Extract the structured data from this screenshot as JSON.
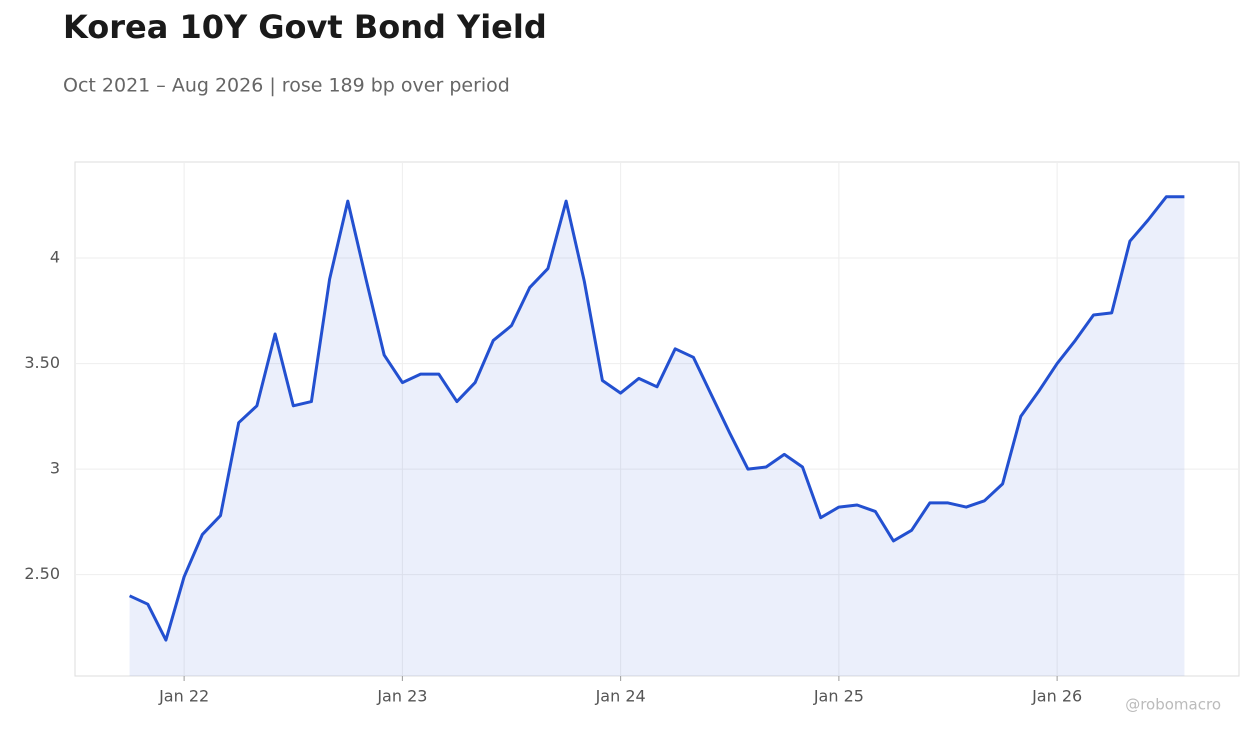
{
  "chart_data": {
    "type": "line",
    "title": "Korea 10Y Govt Bond Yield",
    "subtitle": "Oct 2021 – Aug 2026 | rose 189 bp over period",
    "watermark": "@robomacro",
    "x": [
      "2021-10",
      "2021-11",
      "2021-12",
      "2022-01",
      "2022-02",
      "2022-03",
      "2022-04",
      "2022-05",
      "2022-06",
      "2022-07",
      "2022-08",
      "2022-09",
      "2022-10",
      "2022-11",
      "2022-12",
      "2023-01",
      "2023-02",
      "2023-03",
      "2023-04",
      "2023-05",
      "2023-06",
      "2023-07",
      "2023-08",
      "2023-09",
      "2023-10",
      "2023-11",
      "2023-12",
      "2024-01",
      "2024-02",
      "2024-03",
      "2024-04",
      "2024-05",
      "2024-06",
      "2024-07",
      "2024-08",
      "2024-09",
      "2024-10",
      "2024-11",
      "2024-12",
      "2025-01",
      "2025-02",
      "2025-03",
      "2025-04",
      "2025-05",
      "2025-06",
      "2025-07",
      "2025-08",
      "2025-09",
      "2025-10",
      "2025-11",
      "2025-12",
      "2026-01",
      "2026-02",
      "2026-03",
      "2026-04",
      "2026-05",
      "2026-06",
      "2026-07",
      "2026-08"
    ],
    "series": [
      {
        "name": "Korea 10Y",
        "color": "#2350d0",
        "fill": "rgba(35,80,208,0.09)",
        "values": [
          2.4,
          2.36,
          2.19,
          2.49,
          2.69,
          2.78,
          3.22,
          3.3,
          3.64,
          3.3,
          3.32,
          3.9,
          4.27,
          3.9,
          3.54,
          3.41,
          3.45,
          3.45,
          3.32,
          3.41,
          3.61,
          3.68,
          3.86,
          3.95,
          4.27,
          3.89,
          3.42,
          3.36,
          3.43,
          3.39,
          3.57,
          3.53,
          3.35,
          3.17,
          3.0,
          3.01,
          3.07,
          3.01,
          2.77,
          2.82,
          2.83,
          2.8,
          2.66,
          2.71,
          2.84,
          2.84,
          2.82,
          2.85,
          2.93,
          3.25,
          3.37,
          3.5,
          3.61,
          3.73,
          3.74,
          4.08,
          4.18,
          4.29,
          4.29
        ]
      }
    ],
    "xlim": [
      "2021-07",
      "2026-11"
    ],
    "xticks": [
      {
        "value": "2022-01",
        "label": "Jan 22"
      },
      {
        "value": "2023-01",
        "label": "Jan 23"
      },
      {
        "value": "2024-01",
        "label": "Jan 24"
      },
      {
        "value": "2025-01",
        "label": "Jan 25"
      },
      {
        "value": "2026-01",
        "label": "Jan 26"
      }
    ],
    "ylim": [
      2.02,
      4.455
    ],
    "yticks": [
      {
        "value": 2.5,
        "label": "2.50"
      },
      3,
      {
        "value": 3.5,
        "label": "3.50"
      },
      4
    ],
    "grid": true
  }
}
